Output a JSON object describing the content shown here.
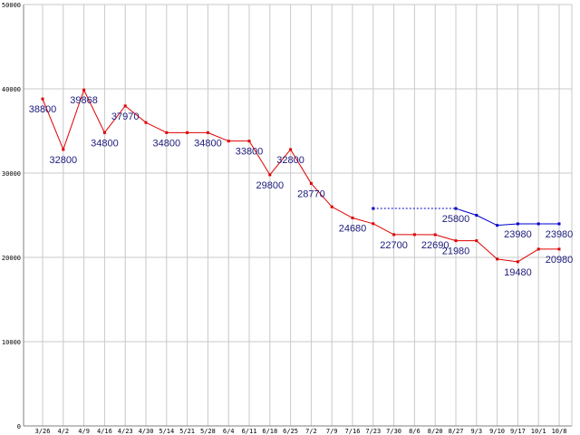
{
  "chart_data": {
    "type": "line",
    "title": "",
    "xlabel": "",
    "ylabel": "",
    "ylim": [
      0,
      50000
    ],
    "yticks": [
      0,
      10000,
      20000,
      30000,
      40000,
      50000
    ],
    "grid": true,
    "categories": [
      "3/26",
      "4/2",
      "4/9",
      "4/16",
      "4/23",
      "4/30",
      "5/14",
      "5/21",
      "5/28",
      "6/4",
      "6/11",
      "6/18",
      "6/25",
      "7/2",
      "7/9",
      "7/16",
      "7/23",
      "7/30",
      "8/6",
      "8/20",
      "8/27",
      "9/3",
      "9/10",
      "9/17",
      "10/1",
      "10/8"
    ],
    "series": [
      {
        "color": "#e00000",
        "values": [
          38800,
          32800,
          39868,
          34800,
          37970,
          36000,
          34800,
          34800,
          34800,
          33800,
          33800,
          29800,
          32800,
          28770,
          26000,
          24680,
          24000,
          22700,
          22700,
          22690,
          21980,
          21980,
          19800,
          19480,
          20980,
          20980
        ],
        "labels": [
          "38800",
          "32800",
          "39868",
          "34800",
          "37970",
          "",
          "34800",
          "",
          "34800",
          "",
          "33800",
          "29800",
          "32800",
          "28770",
          "",
          "24680",
          "",
          "22700",
          "",
          "22690",
          "21980",
          "",
          "",
          "19480",
          "",
          "20980"
        ]
      },
      {
        "color": "#0000cc",
        "values": [
          null,
          null,
          null,
          null,
          null,
          null,
          null,
          null,
          null,
          null,
          null,
          null,
          null,
          null,
          null,
          null,
          25800,
          null,
          null,
          null,
          25800,
          25000,
          23800,
          23980,
          23980,
          23980
        ],
        "dashed_from": 16,
        "dashed_to": 20,
        "labels": [
          "",
          "",
          "",
          "",
          "",
          "",
          "",
          "",
          "",
          "",
          "",
          "",
          "",
          "",
          "",
          "",
          "",
          "",
          "",
          "",
          "25800",
          "",
          "",
          "23980",
          "",
          "23980"
        ]
      }
    ]
  }
}
